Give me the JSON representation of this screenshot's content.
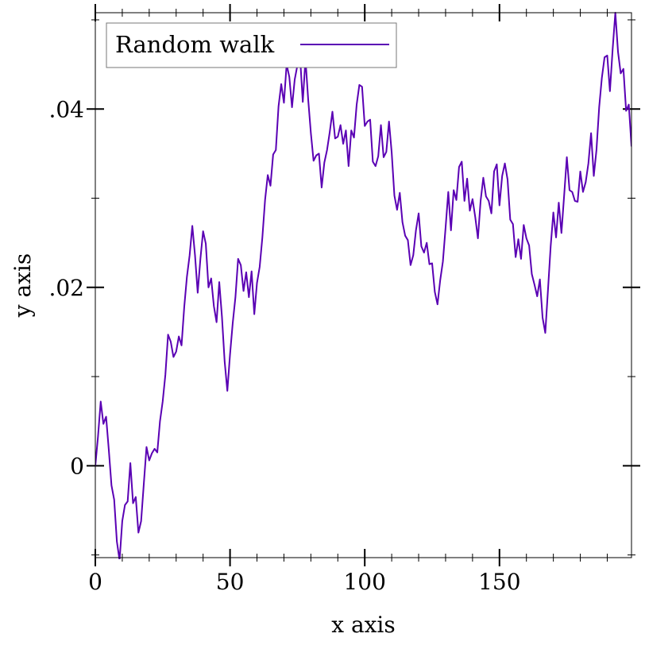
{
  "chart_data": {
    "type": "line",
    "xlabel": "x axis",
    "ylabel": "y axis",
    "xlim": [
      0,
      199
    ],
    "ylim": [
      -0.0103,
      0.0508
    ],
    "x_ticks": [
      {
        "value": 0,
        "label": "0"
      },
      {
        "value": 50,
        "label": "50"
      },
      {
        "value": 100,
        "label": "100"
      },
      {
        "value": 150,
        "label": "150"
      }
    ],
    "y_ticks": [
      {
        "value": 0,
        "label": "0"
      },
      {
        "value": 0.02,
        "label": ".02"
      },
      {
        "value": 0.04,
        "label": ".04"
      }
    ],
    "x_minor_step": 10,
    "y_minor_step": 0.01,
    "legend_position": "top-left",
    "grid": false,
    "series": [
      {
        "name": "Random walk",
        "color": "#5a00b4",
        "x": [
          0,
          1,
          2,
          3,
          4,
          5,
          6,
          7,
          8,
          9,
          10,
          11,
          12,
          13,
          14,
          15,
          16,
          17,
          18,
          19,
          20,
          21,
          22,
          23,
          24,
          25,
          26,
          27,
          28,
          29,
          30,
          31,
          32,
          33,
          34,
          35,
          36,
          37,
          38,
          39,
          40,
          41,
          42,
          43,
          44,
          45,
          46,
          47,
          48,
          49,
          50,
          51,
          52,
          53,
          54,
          55,
          56,
          57,
          58,
          59,
          60,
          61,
          62,
          63,
          64,
          65,
          66,
          67,
          68,
          69,
          70,
          71,
          72,
          73,
          74,
          75,
          76,
          77,
          78,
          79,
          80,
          81,
          82,
          83,
          84,
          85,
          86,
          87,
          88,
          89,
          90,
          91,
          92,
          93,
          94,
          95,
          96,
          97,
          98,
          99,
          100,
          101,
          102,
          103,
          104,
          105,
          106,
          107,
          108,
          109,
          110,
          111,
          112,
          113,
          114,
          115,
          116,
          117,
          118,
          119,
          120,
          121,
          122,
          123,
          124,
          125,
          126,
          127,
          128,
          129,
          130,
          131,
          132,
          133,
          134,
          135,
          136,
          137,
          138,
          139,
          140,
          141,
          142,
          143,
          144,
          145,
          146,
          147,
          148,
          149,
          150,
          151,
          152,
          153,
          154,
          155,
          156,
          157,
          158,
          159,
          160,
          161,
          162,
          163,
          164,
          165,
          166,
          167,
          168,
          169,
          170,
          171,
          172,
          173,
          174,
          175,
          176,
          177,
          178,
          179,
          180,
          181,
          182,
          183,
          184,
          185,
          186,
          187,
          188,
          189,
          190,
          191,
          192,
          193,
          194,
          195,
          196,
          197,
          198,
          199
        ],
        "y": [
          0,
          0.0033,
          0.0072,
          0.0047,
          0.0055,
          0.0018,
          -0.0022,
          -0.0038,
          -0.0085,
          -0.0106,
          -0.0062,
          -0.0044,
          -0.004,
          0.0003,
          -0.0042,
          -0.0035,
          -0.0075,
          -0.0062,
          -0.002,
          0.0021,
          0.0006,
          0.0014,
          0.0019,
          0.0015,
          0.005,
          0.0072,
          0.0102,
          0.0147,
          0.0139,
          0.0122,
          0.0128,
          0.0145,
          0.0135,
          0.0178,
          0.0212,
          0.0236,
          0.0269,
          0.0236,
          0.0194,
          0.0232,
          0.0263,
          0.0249,
          0.02,
          0.021,
          0.0179,
          0.0161,
          0.0206,
          0.0167,
          0.0117,
          0.0084,
          0.0125,
          0.016,
          0.0189,
          0.0232,
          0.0225,
          0.0196,
          0.0217,
          0.0189,
          0.0218,
          0.017,
          0.0205,
          0.0223,
          0.0256,
          0.0298,
          0.0326,
          0.0314,
          0.0349,
          0.0354,
          0.0403,
          0.0428,
          0.0407,
          0.045,
          0.0436,
          0.0402,
          0.0433,
          0.0449,
          0.0458,
          0.0408,
          0.0456,
          0.0411,
          0.0373,
          0.0342,
          0.0348,
          0.035,
          0.0312,
          0.034,
          0.0354,
          0.0374,
          0.0397,
          0.0367,
          0.0369,
          0.0382,
          0.0361,
          0.0376,
          0.0336,
          0.0376,
          0.0368,
          0.0405,
          0.0427,
          0.0425,
          0.0381,
          0.0386,
          0.0388,
          0.0341,
          0.0336,
          0.0347,
          0.0382,
          0.0346,
          0.0352,
          0.0386,
          0.0351,
          0.0303,
          0.0287,
          0.0306,
          0.0273,
          0.0258,
          0.0253,
          0.0225,
          0.0236,
          0.0264,
          0.0283,
          0.0246,
          0.0239,
          0.025,
          0.0226,
          0.0227,
          0.0195,
          0.0181,
          0.0208,
          0.0229,
          0.0267,
          0.0307,
          0.0264,
          0.0309,
          0.0298,
          0.0335,
          0.0341,
          0.0297,
          0.0322,
          0.0286,
          0.0299,
          0.0279,
          0.0255,
          0.0297,
          0.0323,
          0.0302,
          0.0297,
          0.0283,
          0.033,
          0.0338,
          0.0292,
          0.0325,
          0.0339,
          0.0321,
          0.0276,
          0.0271,
          0.0234,
          0.0254,
          0.0232,
          0.027,
          0.0255,
          0.0247,
          0.0215,
          0.0203,
          0.019,
          0.0209,
          0.0166,
          0.0149,
          0.0197,
          0.0246,
          0.0284,
          0.0256,
          0.0295,
          0.0261,
          0.0303,
          0.0346,
          0.0309,
          0.0307,
          0.0297,
          0.0296,
          0.033,
          0.0307,
          0.0318,
          0.0339,
          0.0373,
          0.0325,
          0.0354,
          0.0402,
          0.0435,
          0.0458,
          0.046,
          0.042,
          0.0467,
          0.0508,
          0.0464,
          0.044,
          0.0445,
          0.0398,
          0.0405,
          0.0358
        ]
      }
    ]
  }
}
